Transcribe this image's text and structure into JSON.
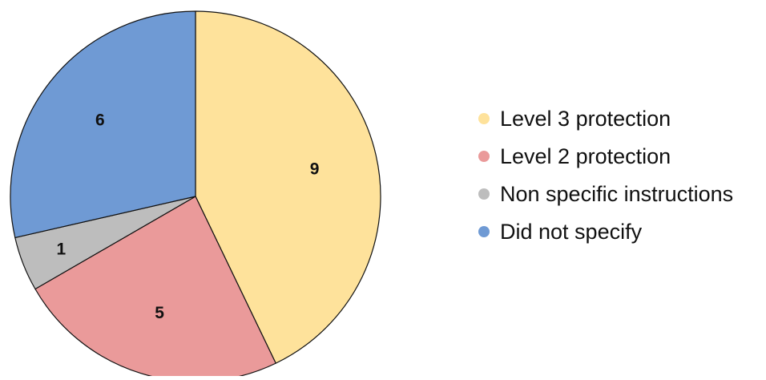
{
  "chart_data": {
    "type": "pie",
    "title": "",
    "legend_position": "right",
    "slices": [
      {
        "label": "Level 3 protection",
        "value": 9,
        "data_label": "9",
        "color": "#FEE29B"
      },
      {
        "label": "Level 2 protection",
        "value": 5,
        "data_label": "5",
        "color": "#EA9A9A"
      },
      {
        "label": "Non specific instructions",
        "value": 1,
        "data_label": "1",
        "color": "#BDBDBD"
      },
      {
        "label": "Did not specify",
        "value": 6,
        "data_label": "6",
        "color": "#6F9AD4"
      }
    ],
    "start_angle_deg": 0,
    "direction": "clockwise"
  }
}
